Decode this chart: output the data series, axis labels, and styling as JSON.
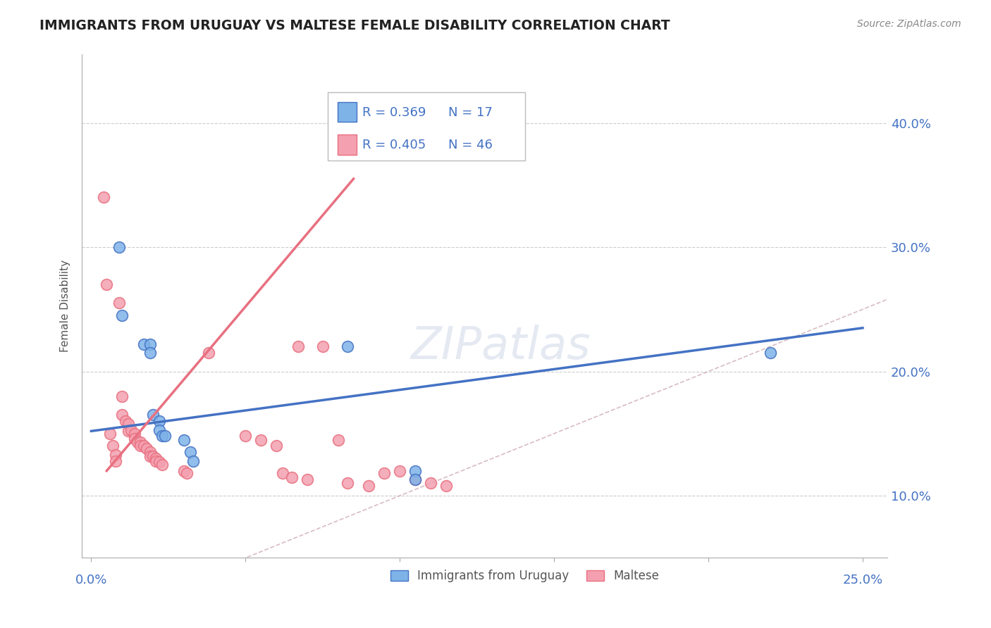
{
  "title": "IMMIGRANTS FROM URUGUAY VS MALTESE FEMALE DISABILITY CORRELATION CHART",
  "source": "Source: ZipAtlas.com",
  "ylabel": "Female Disability",
  "legend_r1": "R = 0.369",
  "legend_n1": "N = 17",
  "legend_r2": "R = 0.405",
  "legend_n2": "N = 46",
  "legend_label1": "Immigrants from Uruguay",
  "legend_label2": "Maltese",
  "color_blue": "#7EB3E8",
  "color_pink": "#F4A0B0",
  "color_blue_line": "#4472C4",
  "color_pink_line": "#E87080",
  "color_diag": "#C8A0A8",
  "watermark": "ZIPatlas",
  "blue_points": [
    [
      0.009,
      0.3
    ],
    [
      0.01,
      0.245
    ],
    [
      0.017,
      0.222
    ],
    [
      0.019,
      0.222
    ],
    [
      0.019,
      0.215
    ],
    [
      0.02,
      0.165
    ],
    [
      0.022,
      0.16
    ],
    [
      0.022,
      0.153
    ],
    [
      0.023,
      0.148
    ],
    [
      0.024,
      0.148
    ],
    [
      0.03,
      0.145
    ],
    [
      0.032,
      0.135
    ],
    [
      0.033,
      0.128
    ],
    [
      0.083,
      0.22
    ],
    [
      0.105,
      0.12
    ],
    [
      0.105,
      0.113
    ],
    [
      0.22,
      0.215
    ]
  ],
  "pink_points": [
    [
      0.004,
      0.34
    ],
    [
      0.005,
      0.27
    ],
    [
      0.006,
      0.15
    ],
    [
      0.007,
      0.14
    ],
    [
      0.008,
      0.133
    ],
    [
      0.008,
      0.128
    ],
    [
      0.009,
      0.255
    ],
    [
      0.01,
      0.18
    ],
    [
      0.01,
      0.165
    ],
    [
      0.011,
      0.16
    ],
    [
      0.012,
      0.158
    ],
    [
      0.012,
      0.152
    ],
    [
      0.013,
      0.153
    ],
    [
      0.014,
      0.15
    ],
    [
      0.014,
      0.146
    ],
    [
      0.015,
      0.143
    ],
    [
      0.016,
      0.143
    ],
    [
      0.016,
      0.14
    ],
    [
      0.017,
      0.14
    ],
    [
      0.018,
      0.138
    ],
    [
      0.019,
      0.135
    ],
    [
      0.019,
      0.132
    ],
    [
      0.02,
      0.132
    ],
    [
      0.021,
      0.13
    ],
    [
      0.021,
      0.128
    ],
    [
      0.022,
      0.127
    ],
    [
      0.023,
      0.125
    ],
    [
      0.03,
      0.12
    ],
    [
      0.031,
      0.118
    ],
    [
      0.038,
      0.215
    ],
    [
      0.05,
      0.148
    ],
    [
      0.055,
      0.145
    ],
    [
      0.06,
      0.14
    ],
    [
      0.062,
      0.118
    ],
    [
      0.065,
      0.115
    ],
    [
      0.067,
      0.22
    ],
    [
      0.07,
      0.113
    ],
    [
      0.075,
      0.22
    ],
    [
      0.08,
      0.145
    ],
    [
      0.083,
      0.11
    ],
    [
      0.09,
      0.108
    ],
    [
      0.095,
      0.118
    ],
    [
      0.1,
      0.12
    ],
    [
      0.105,
      0.113
    ],
    [
      0.11,
      0.11
    ],
    [
      0.115,
      0.108
    ]
  ],
  "blue_line": [
    [
      0.0,
      0.152
    ],
    [
      0.25,
      0.235
    ]
  ],
  "pink_line": [
    [
      0.005,
      0.12
    ],
    [
      0.085,
      0.355
    ]
  ],
  "xlim": [
    -0.003,
    0.258
  ],
  "ylim": [
    0.05,
    0.455
  ],
  "yticks": [
    0.1,
    0.2,
    0.3,
    0.4
  ],
  "ytick_labels": [
    "10.0%",
    "20.0%",
    "30.0%",
    "40.0%"
  ],
  "xticks": [
    0.0,
    0.05,
    0.1,
    0.15,
    0.2,
    0.25
  ]
}
